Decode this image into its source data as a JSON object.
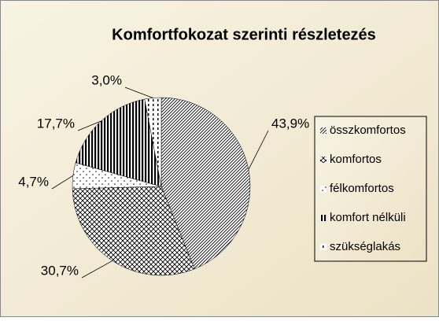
{
  "chart_data": {
    "type": "pie",
    "title": "Komfortfokozat szerinti részletezés",
    "categories": [
      "összkomfortos",
      "komfortos",
      "félkomfortos",
      "komfort nélküli",
      "szükséglakás"
    ],
    "values": [
      43.9,
      30.7,
      4.7,
      17.7,
      3.0
    ],
    "value_labels": [
      "43,9%",
      "30,7%",
      "4,7%",
      "17,7%",
      "3,0%"
    ],
    "legend": "right"
  }
}
